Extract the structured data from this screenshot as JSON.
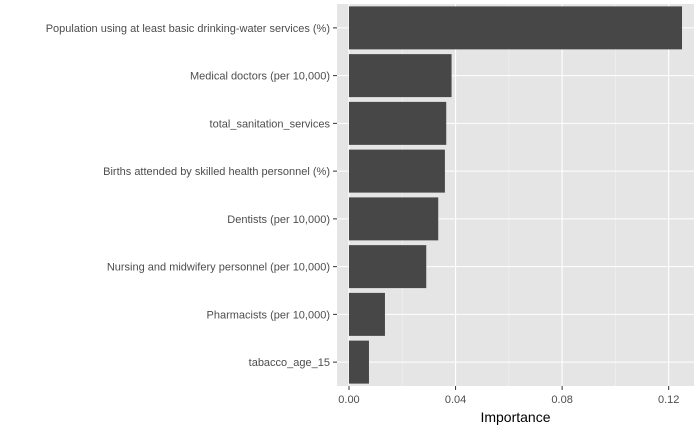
{
  "chart_data": {
    "type": "bar",
    "orientation": "horizontal",
    "categories": [
      "Population using at least basic drinking-water services (%)",
      "Medical doctors (per 10,000)",
      "total_sanitation_services",
      "Births attended by skilled health personnel (%)",
      "Dentists (per 10,000)",
      "Nursing and midwifery personnel (per 10,000)",
      "Pharmacists  (per 10,000)",
      "tabacco_age_15"
    ],
    "values": [
      0.125,
      0.0385,
      0.0365,
      0.036,
      0.0335,
      0.029,
      0.0135,
      0.0075
    ],
    "xlabel": "Importance",
    "ylabel": "",
    "xlim": [
      -0.0045,
      0.1295
    ],
    "xticks": [
      0.0,
      0.04,
      0.08,
      0.12
    ],
    "xtick_labels": [
      "0.00",
      "0.04",
      "0.08",
      "0.12"
    ],
    "grid": true,
    "colors": {
      "panel_background": "#e5e5e5",
      "grid_major": "#ffffff",
      "bar_fill": "#474747",
      "tick_text": "#4d4d4d",
      "tick_mark": "#333333"
    }
  }
}
